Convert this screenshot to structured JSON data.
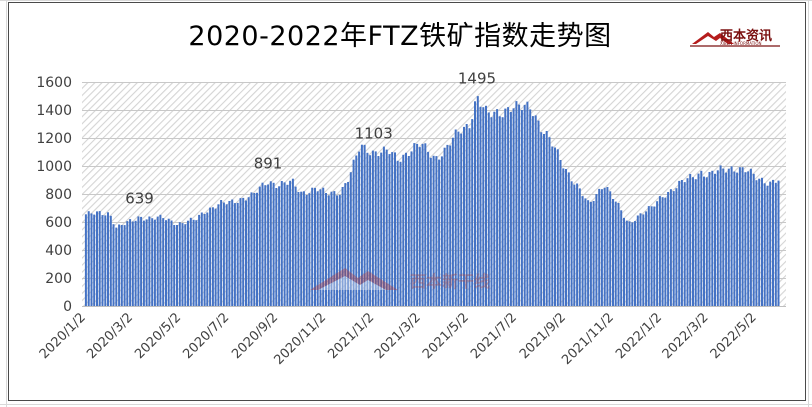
{
  "chart_data": {
    "type": "bar",
    "title": "2020-2022年FTZ铁矿指数走势图",
    "xlabel": "",
    "ylabel": "",
    "ylim": [
      0,
      1600
    ],
    "yticks": [
      0,
      200,
      400,
      600,
      800,
      1000,
      1200,
      1400,
      1600
    ],
    "grid": true,
    "legend": "none",
    "colors": {
      "bar": "#4472c4",
      "plot_bg": "hatched light gray"
    },
    "x_tick_labels": [
      "2020/1/2",
      "2020/3/2",
      "2020/5/2",
      "2020/7/2",
      "2020/9/2",
      "2020/11/2",
      "2021/1/2",
      "2021/3/2",
      "2021/5/2",
      "2021/7/2",
      "2021/9/2",
      "2021/11/2",
      "2022/1/2",
      "2022/3/2",
      "2022/5/2"
    ],
    "annotations": [
      {
        "label": "639",
        "x": "2020/3/10",
        "value": 639
      },
      {
        "label": "891",
        "x": "2020/8/20",
        "value": 891
      },
      {
        "label": "1103",
        "x": "2021/1/1",
        "value": 1103
      },
      {
        "label": "1495",
        "x": "2021/5/12",
        "value": 1495
      }
    ],
    "series": [
      {
        "points": [
          [
            "2020/1/2",
            655
          ],
          [
            "2020/1/20",
            660
          ],
          [
            "2020/2/1",
            665
          ],
          [
            "2020/2/10",
            560
          ],
          [
            "2020/3/2",
            610
          ],
          [
            "2020/3/10",
            639
          ],
          [
            "2020/3/25",
            625
          ],
          [
            "2020/4/10",
            628
          ],
          [
            "2020/4/25",
            595
          ],
          [
            "2020/5/2",
            590
          ],
          [
            "2020/5/20",
            615
          ],
          [
            "2020/6/1",
            680
          ],
          [
            "2020/6/20",
            730
          ],
          [
            "2020/7/2",
            735
          ],
          [
            "2020/7/20",
            775
          ],
          [
            "2020/8/1",
            790
          ],
          [
            "2020/8/20",
            891
          ],
          [
            "2020/9/2",
            870
          ],
          [
            "2020/9/20",
            880
          ],
          [
            "2020/10/1",
            810
          ],
          [
            "2020/10/20",
            840
          ],
          [
            "2020/11/2",
            800
          ],
          [
            "2020/11/20",
            820
          ],
          [
            "2020/12/1",
            920
          ],
          [
            "2020/12/15",
            1140
          ],
          [
            "2021/1/1",
            1103
          ],
          [
            "2021/1/20",
            1100
          ],
          [
            "2021/2/1",
            1050
          ],
          [
            "2021/2/20",
            1130
          ],
          [
            "2021/3/2",
            1150
          ],
          [
            "2021/3/20",
            1060
          ],
          [
            "2021/4/1",
            1110
          ],
          [
            "2021/4/20",
            1250
          ],
          [
            "2021/5/2",
            1300
          ],
          [
            "2021/5/12",
            1495
          ],
          [
            "2021/5/25",
            1360
          ],
          [
            "2021/6/10",
            1390
          ],
          [
            "2021/6/25",
            1420
          ],
          [
            "2021/7/2",
            1410
          ],
          [
            "2021/7/20",
            1430
          ],
          [
            "2021/8/1",
            1280
          ],
          [
            "2021/8/20",
            1110
          ],
          [
            "2021/9/2",
            980
          ],
          [
            "2021/9/20",
            820
          ],
          [
            "2021/10/1",
            720
          ],
          [
            "2021/10/20",
            880
          ],
          [
            "2021/11/2",
            760
          ],
          [
            "2021/11/20",
            590
          ],
          [
            "2021/12/1",
            640
          ],
          [
            "2021/12/20",
            700
          ],
          [
            "2022/1/2",
            790
          ],
          [
            "2022/1/20",
            850
          ],
          [
            "2022/2/1",
            900
          ],
          [
            "2022/2/20",
            960
          ],
          [
            "2022/3/2",
            930
          ],
          [
            "2022/3/20",
            980
          ],
          [
            "2022/4/1",
            990
          ],
          [
            "2022/4/20",
            960
          ],
          [
            "2022/5/2",
            920
          ],
          [
            "2022/5/20",
            880
          ],
          [
            "2022/6/1",
            900
          ]
        ]
      }
    ]
  },
  "brand": {
    "name": "西本资讯",
    "tagline": "XIBEN INFORMATION",
    "watermark": "西本新干线"
  }
}
